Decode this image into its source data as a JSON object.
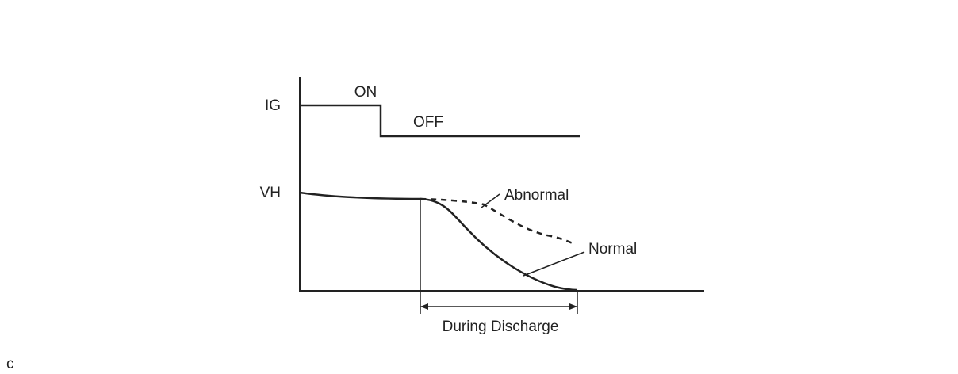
{
  "signals": {
    "ig": {
      "label": "IG",
      "on": "ON",
      "off": "OFF"
    },
    "vh": {
      "label": "VH",
      "abnormal": "Abnormal",
      "normal": "Normal"
    }
  },
  "period": {
    "label": "During Discharge"
  },
  "figure_code": "c"
}
